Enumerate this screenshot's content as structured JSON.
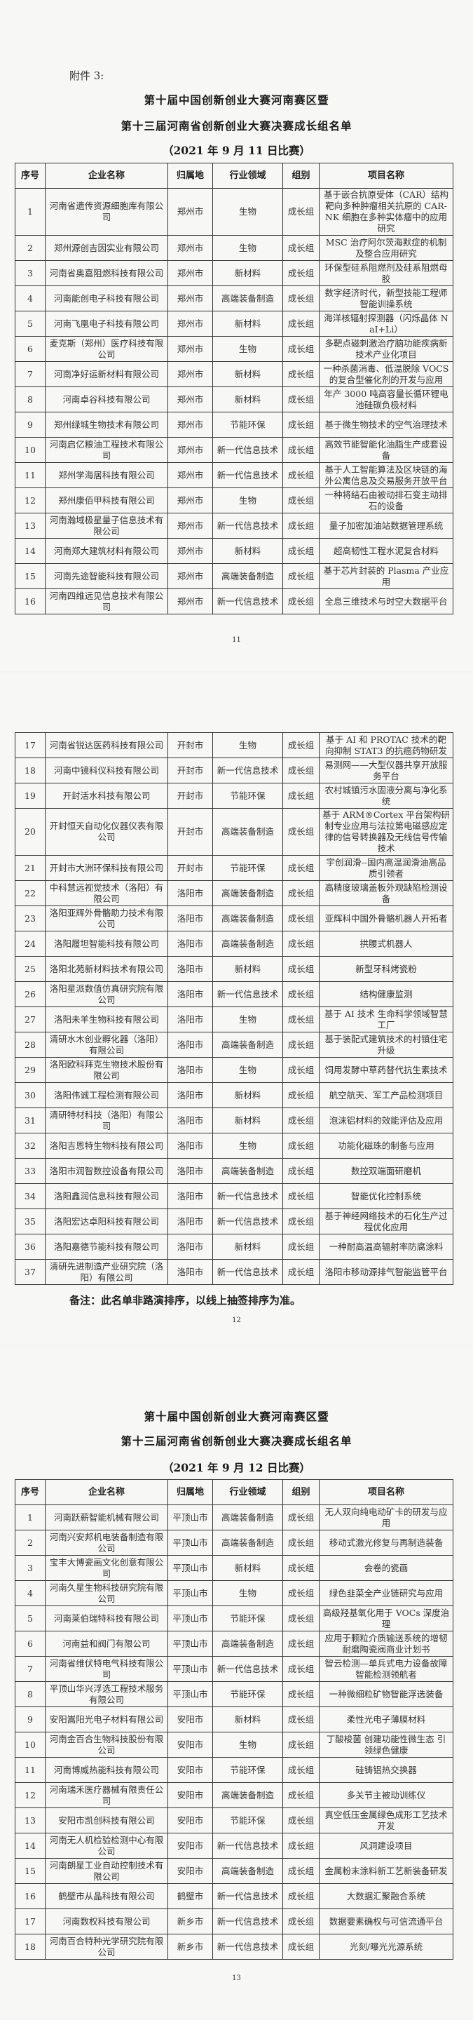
{
  "headers": [
    "序号",
    "企业名称",
    "归属地",
    "行业领域",
    "组别",
    "项目名称"
  ],
  "page1": {
    "attachment": "附件 3:",
    "title_line1": "第十届中国创新创业大赛河南赛区暨",
    "title_line2": "第十三届河南省创新创业大赛决赛成长组名单",
    "subtitle": "（2021 年 9 月 11 日比赛）",
    "page_number": "11",
    "rows": [
      [
        "1",
        "河南省遗传资源细胞库有限公司",
        "郑州市",
        "生物",
        "成长组",
        "基于嵌合抗原受体（CAR）结构靶向多种肿瘤相关抗原的 CAR-NK 细胞在多种实体瘤中的应用研究"
      ],
      [
        "2",
        "郑州源创吉因实业有限公司",
        "郑州市",
        "生物",
        "成长组",
        "MSC 治疗阿尔茨海默症的机制及整合应用研究"
      ],
      [
        "3",
        "河南省奥嘉阻燃科技有限公司",
        "郑州市",
        "新材料",
        "成长组",
        "环保型硅系阻燃剂及硅系阻燃母胶"
      ],
      [
        "4",
        "河南能创电子科技有限公司",
        "郑州市",
        "高端装备制造",
        "成长组",
        "数字经济时代，新型技能工程师智能训操系统"
      ],
      [
        "5",
        "河南飞凰电子科技有限公司",
        "郑州市",
        "新材料",
        "成长组",
        "海洋核辐射探测器（闪烁晶体 NaI+Li）"
      ],
      [
        "6",
        "麦克斯（郑州）医疗科技有限公司",
        "郑州市",
        "生物",
        "成长组",
        "多靶点磁刺激治疗脑功能疾病新技术产业化项目"
      ],
      [
        "7",
        "河南净好运新材料有限公司",
        "郑州市",
        "新材料",
        "成长组",
        "一种杀菌消毒、低温脱除 VOCS 的复合型催化剂的开发与应用"
      ],
      [
        "8",
        "河南卓谷科技有限公司",
        "郑州市",
        "新材料",
        "成长组",
        "年产 3000 吨高容量长循环锂电池硅碳负极材料"
      ],
      [
        "9",
        "郑州绿城生物技术有限公司",
        "郑州市",
        "节能环保",
        "成长组",
        "基于微生物技术的空气治理技术"
      ],
      [
        "10",
        "河南启亿粮油工程技术有限公司",
        "郑州市",
        "新一代信息技术",
        "成长组",
        "高效节能智能化油脂生产成套设备"
      ],
      [
        "11",
        "郑州学海居科技有限公司",
        "郑州市",
        "新一代信息技术",
        "成长组",
        "基于人工智能算法及区块链的海外公寓信息及交易服务开放平台"
      ],
      [
        "12",
        "郑州康佰甲科技有限公司",
        "郑州市",
        "生物",
        "成长组",
        "一种将结石由被动排石变主动排石的设备"
      ],
      [
        "13",
        "河南瀚域极星量子信息技术有限公司",
        "郑州市",
        "新一代信息技术",
        "成长组",
        "量子加密加油站数据管理系统"
      ],
      [
        "14",
        "河南郑大建筑材料有限公司",
        "郑州市",
        "新材料",
        "成长组",
        "超高韧性工程水泥复合材料"
      ],
      [
        "15",
        "河南先途智能科技有限公司",
        "郑州市",
        "高端装备制造",
        "成长组",
        "基于芯片封装的 Plasma 产业应用"
      ],
      [
        "16",
        "河南四维远见信息技术有限公司",
        "郑州市",
        "新一代信息技术",
        "成长组",
        "全息三维技术与时空大数据平台"
      ]
    ]
  },
  "page2": {
    "note": "备注：此名单非路演排序，以线上抽签排序为准。",
    "page_number": "12",
    "rows": [
      [
        "17",
        "河南省锐达医药科技有限公司",
        "开封市",
        "生物",
        "成长组",
        "基于 AI 和 PROTAC 技术的靶向抑制 STAT3 的抗癌药物研发"
      ],
      [
        "18",
        "河南中镜科仪科技有限公司",
        "开封市",
        "新一代信息技术",
        "成长组",
        "易测网——大型仪器共享开放服务平台"
      ],
      [
        "19",
        "开封活水科技有限公司",
        "开封市",
        "节能环保",
        "成长组",
        "农村城镇污水固液分离与净化系统"
      ],
      [
        "20",
        "开封恒天自动化仪器仪表有限公司",
        "开封市",
        "高端装备制造",
        "成长组",
        "基于 ARM®Cortex 平台架构研制专业应用与法拉第电磁感应定律的信号转换器及无线信号传输技术"
      ],
      [
        "21",
        "开封市大洲环保科技有限公司",
        "开封市",
        "节能环保",
        "成长组",
        "宇创润滑--国内高温润滑油高品质引领者"
      ],
      [
        "22",
        "中科慧远视觉技术（洛阳）有限公司",
        "洛阳市",
        "高端装备制造",
        "成长组",
        "高精度玻璃盖板外观缺陷检测设备"
      ],
      [
        "23",
        "洛阳亚辉外骨骼助力技术有限公司",
        "洛阳市",
        "高端装备制造",
        "成长组",
        "亚辉科中国外骨骼机器人开拓者"
      ],
      [
        "24",
        "洛阳履坦智能科技有限公司",
        "洛阳市",
        "高端装备制造",
        "成长组",
        "拱腰式机器人"
      ],
      [
        "25",
        "洛阳北苑新材料技术有限公司",
        "洛阳市",
        "新材料",
        "成长组",
        "新型牙科烤瓷粉"
      ],
      [
        "26",
        "洛阳星派数值仿真研究院有限公司",
        "洛阳市",
        "新一代信息技术",
        "成长组",
        "结构健康监测"
      ],
      [
        "27",
        "洛阳未羊生物科技有限公司",
        "洛阳市",
        "生物",
        "成长组",
        "基于 AI 技术 生命科学领域智慧工厂"
      ],
      [
        "28",
        "清研水木创业孵化器（洛阳）有限公司",
        "洛阳市",
        "高端装备制造",
        "成长组",
        "基于装配式建筑技术的村镇住宅升级"
      ],
      [
        "29",
        "洛阳欧科拜克生物技术股份有限公司",
        "洛阳市",
        "生物",
        "成长组",
        "饲用发酵中草药替代抗生素技术"
      ],
      [
        "30",
        "洛阳伟诚工程检测有限公司",
        "洛阳市",
        "新材料",
        "成长组",
        "航空航天、军工产品检测项目"
      ],
      [
        "31",
        "清研特材科技（洛阳）有限公司",
        "洛阳市",
        "新材料",
        "成长组",
        "泡沫铝材料的效能评估及应用"
      ],
      [
        "32",
        "洛阳吉恩特生物科技有限公司",
        "洛阳市",
        "生物",
        "成长组",
        "功能化磁珠的制备与应用"
      ],
      [
        "33",
        "洛阳市润智数控设备有限公司",
        "洛阳市",
        "高端装备制造",
        "成长组",
        "数控双端面研磨机"
      ],
      [
        "34",
        "洛阳鑫润信息科技有限公司",
        "洛阳市",
        "新一代信息技术",
        "成长组",
        "智能优化控制系统"
      ],
      [
        "35",
        "洛阳宏达卓阳科技有限公司",
        "洛阳市",
        "新一代信息技术",
        "成长组",
        "基于神经网络技术的石化生产过程优化应用"
      ],
      [
        "36",
        "洛阳嘉德节能科技有限公司",
        "洛阳市",
        "新材料",
        "成长组",
        "一种耐高温高辐射率防腐涂料"
      ],
      [
        "37",
        "清研先进制造产业研究院（洛阳）有限公司",
        "洛阳市",
        "新一代信息技术",
        "成长组",
        "洛阳市移动源排气智能监管平台"
      ]
    ]
  },
  "page3": {
    "title_line1": "第十届中国创新创业大赛河南赛区暨",
    "title_line2": "第十三届河南省创新创业大赛决赛成长组名单",
    "subtitle": "（2021 年 9 月 12 日比赛）",
    "page_number": "13",
    "rows": [
      [
        "1",
        "河南跃薪智能机械有限公司",
        "平顶山市",
        "高端装备制造",
        "成长组",
        "无人双向纯电动矿卡的研发与应用"
      ],
      [
        "2",
        "河南兴安邦机电装备制造有限公司",
        "平顶山市",
        "高端装备制造",
        "成长组",
        "移动式激光修复与再制造装备"
      ],
      [
        "3",
        "宝丰大博瓷画文化创意有限公司",
        "平顶山市",
        "新材料",
        "成长组",
        "会卷的瓷画"
      ],
      [
        "4",
        "河南久星生物科技研究院有限公司",
        "平顶山市",
        "生物",
        "成长组",
        "绿色韭菜全产业链研究与应用"
      ],
      [
        "5",
        "河南莱伯瑞特科技有限公司",
        "平顶山市",
        "节能环保",
        "成长组",
        "高级羟基氧化用于 VOCs 深度治理"
      ],
      [
        "6",
        "河南益和阀门有限公司",
        "平顶山市",
        "高端装备制造",
        "成长组",
        "应用于颗粒介质输送系统的增韧耐磨陶瓷阀商业计划书"
      ],
      [
        "7",
        "河南省维伏特电气科技有限公司",
        "平顶山市",
        "新一代信息技术",
        "成长组",
        "智云检测—单兵式电力设备故障智能检测领航者"
      ],
      [
        "8",
        "平顶山华兴浮选工程技术服务有限公司",
        "平顶山市",
        "节能环保",
        "成长组",
        "一种微细粒矿物智能浮选装备"
      ],
      [
        "9",
        "安阳嵩阳光电子材料有限公司",
        "安阳市",
        "新材料",
        "成长组",
        "柔性光电子薄膜材料"
      ],
      [
        "10",
        "河南金百合生物科技股份有限公司",
        "安阳市",
        "生物",
        "成长组",
        "丁酸梭菌 创建功能性微生态 引领绿色健康"
      ],
      [
        "11",
        "河南博威热能科技有限公司",
        "安阳市",
        "节能环保",
        "成长组",
        "硅铸铝热交换器"
      ],
      [
        "12",
        "河南瑞禾医疗器械有限责任公司",
        "安阳市",
        "高端装备制造",
        "成长组",
        "多关节主被动训练仪"
      ],
      [
        "13",
        "安阳市凯创科技有限公司",
        "安阳市",
        "节能环保",
        "成长组",
        "真空低压金属绿色成形工艺技术开发"
      ],
      [
        "14",
        "河南无人机检验检测中心有限公司",
        "安阳市",
        "新一代信息技术",
        "成长组",
        "风洞建设项目"
      ],
      [
        "15",
        "河南朗星工业自动控制技术有限公司",
        "安阳市",
        "高端装备制造",
        "成长组",
        "金属粉末涂料新工艺新装备研发"
      ],
      [
        "16",
        "鹤壁市从晶科技有限公司",
        "鹤壁市",
        "新一代信息技术",
        "成长组",
        "大数据汇聚融合系统"
      ],
      [
        "17",
        "河南数权科技有限公司",
        "新乡市",
        "新一代信息技术",
        "成长组",
        "数据要素确权与可信流通平台"
      ],
      [
        "18",
        "河南百合特种光学研究院有限公司",
        "新乡市",
        "新一代信息技术",
        "成长组",
        "光刻/曝光光源系统"
      ]
    ]
  }
}
